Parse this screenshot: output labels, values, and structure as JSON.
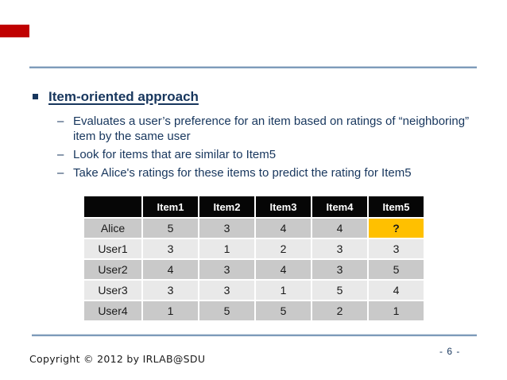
{
  "slide": {
    "accent_color": "#C00000",
    "rule_color": "#7E9CBA",
    "text_color": "#17365D",
    "title_marker": "▪",
    "title": "Item-oriented approach"
  },
  "bullets": {
    "marker": "–",
    "items": [
      "Evaluates a user’s preference for an item based on ratings of “neighboring”\nitem by the same user",
      "Look for items that are similar to Item5",
      "Take Alice's ratings for these items to predict the rating for Item5"
    ]
  },
  "table": {
    "header_bg": "#060606",
    "header_text_color": "#FFFFFF",
    "row_dark_bg": "#C9C9C9",
    "row_light_bg": "#E9E9E9",
    "highlight_bg": "#FFC000",
    "columns": [
      "",
      "Item1",
      "Item2",
      "Item3",
      "Item4",
      "Item5"
    ],
    "rows": [
      {
        "label": "Alice",
        "values": [
          "5",
          "3",
          "4",
          "4",
          "?"
        ],
        "shade": "dark",
        "highlight_col": 4
      },
      {
        "label": "User1",
        "values": [
          "3",
          "1",
          "2",
          "3",
          "3"
        ],
        "shade": "light",
        "highlight_col": -1
      },
      {
        "label": "User2",
        "values": [
          "4",
          "3",
          "4",
          "3",
          "5"
        ],
        "shade": "dark",
        "highlight_col": -1
      },
      {
        "label": "User3",
        "values": [
          "3",
          "3",
          "1",
          "5",
          "4"
        ],
        "shade": "light",
        "highlight_col": -1
      },
      {
        "label": "User4",
        "values": [
          "1",
          "5",
          "5",
          "2",
          "1"
        ],
        "shade": "dark",
        "highlight_col": -1
      }
    ]
  },
  "footer": {
    "copyright": "Copyright © 2012 by IRLAB@SDU",
    "page_number": "- 6 -"
  }
}
